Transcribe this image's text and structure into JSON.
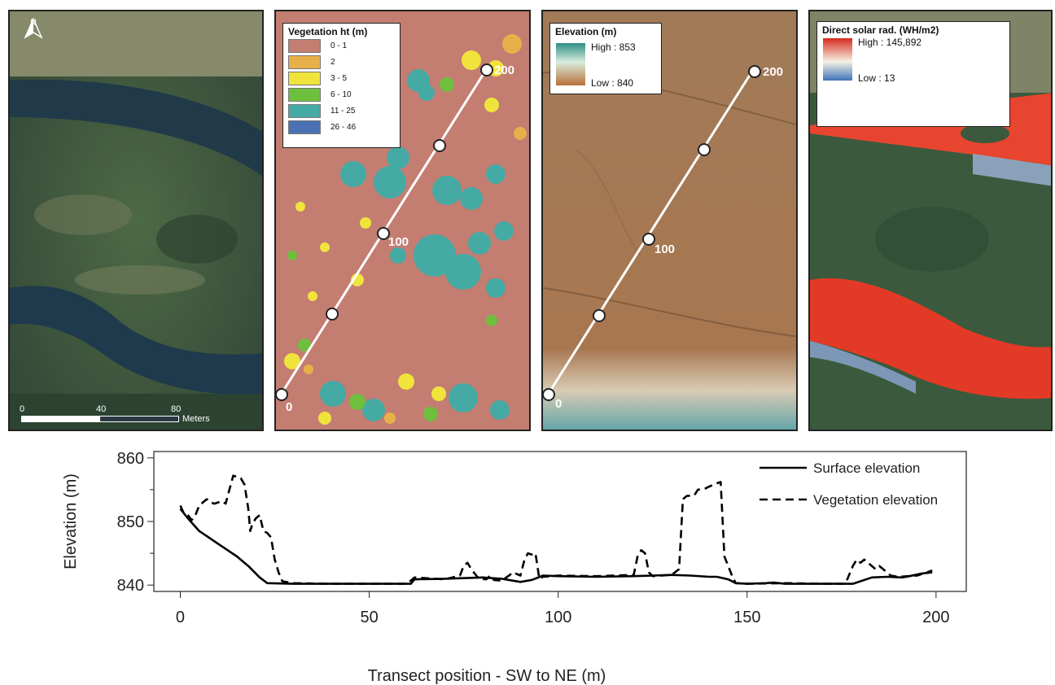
{
  "panels": {
    "aerial": {
      "north_label": "N",
      "scale_labels": [
        "0",
        "40",
        "80",
        "Meters"
      ]
    },
    "vegetation": {
      "legend_title": "Vegetation ht (m)",
      "classes": [
        {
          "label": "0 - 1",
          "color": "#c47d71"
        },
        {
          "label": "2",
          "color": "#e8b04a"
        },
        {
          "label": "3 - 5",
          "color": "#f0e43c"
        },
        {
          "label": "6 - 10",
          "color": "#6fbf3e"
        },
        {
          "label": "11 - 25",
          "color": "#45aaa4"
        },
        {
          "label": "26 - 46",
          "color": "#4c71b3"
        }
      ],
      "transect_labels": [
        "0",
        "100",
        "200"
      ]
    },
    "elevation": {
      "legend_title": "Elevation (m)",
      "high_label": "High : 853",
      "low_label": "Low : 840",
      "transect_labels": [
        "0",
        "100",
        "200"
      ]
    },
    "solar": {
      "legend_title": "Direct solar rad. (WH/m2)",
      "high_label": "High : 145,892",
      "low_label": "Low : 13"
    }
  },
  "chart_data": {
    "type": "line",
    "xlabel": "Transect position - SW to NE (m)",
    "ylabel": "Elevation (m)",
    "xlim": [
      -7,
      208
    ],
    "ylim": [
      839,
      861
    ],
    "xticks": [
      0,
      50,
      100,
      150,
      200
    ],
    "yticks": [
      840,
      850,
      860
    ],
    "legend_position": "top-right",
    "series": [
      {
        "name": "Surface elevation",
        "style": "solid",
        "color": "#000000",
        "points": [
          [
            0,
            852
          ],
          [
            2,
            850.5
          ],
          [
            5,
            848.5
          ],
          [
            10,
            846.5
          ],
          [
            15,
            844.5
          ],
          [
            18,
            843
          ],
          [
            21,
            841.2
          ],
          [
            23,
            840.3
          ],
          [
            30,
            840.2
          ],
          [
            40,
            840.2
          ],
          [
            50,
            840.2
          ],
          [
            55,
            840.2
          ],
          [
            61,
            840.2
          ],
          [
            62,
            840.9
          ],
          [
            70,
            841
          ],
          [
            80,
            841.2
          ],
          [
            85,
            841
          ],
          [
            90,
            840.5
          ],
          [
            93,
            840.8
          ],
          [
            96,
            841.5
          ],
          [
            100,
            841.4
          ],
          [
            110,
            841.3
          ],
          [
            120,
            841.4
          ],
          [
            125,
            841.5
          ],
          [
            130,
            841.6
          ],
          [
            135,
            841.5
          ],
          [
            140,
            841.3
          ],
          [
            142,
            841.3
          ],
          [
            145,
            840.9
          ],
          [
            147,
            840.3
          ],
          [
            150,
            840.2
          ],
          [
            155,
            840.3
          ],
          [
            157,
            840.4
          ],
          [
            160,
            840.2
          ],
          [
            170,
            840.2
          ],
          [
            178,
            840.2
          ],
          [
            180,
            840.6
          ],
          [
            183,
            841.2
          ],
          [
            187,
            841.3
          ],
          [
            191,
            841.2
          ],
          [
            193,
            841.4
          ],
          [
            196,
            841.8
          ],
          [
            199,
            842
          ]
        ]
      },
      {
        "name": "Vegetation elevation",
        "style": "dashed",
        "color": "#000000",
        "points": [
          [
            0,
            852.5
          ],
          [
            1,
            851.2
          ],
          [
            2,
            851
          ],
          [
            3,
            850.2
          ],
          [
            4,
            851
          ],
          [
            5,
            852.5
          ],
          [
            6,
            853
          ],
          [
            7,
            853.5
          ],
          [
            8,
            853
          ],
          [
            9,
            852.8
          ],
          [
            11,
            853.2
          ],
          [
            12,
            852.8
          ],
          [
            13,
            855
          ],
          [
            14,
            857.2
          ],
          [
            15,
            857
          ],
          [
            16,
            856.8
          ],
          [
            17,
            855.8
          ],
          [
            18,
            852
          ],
          [
            18.5,
            848.5
          ],
          [
            19,
            849.5
          ],
          [
            20,
            850.5
          ],
          [
            21,
            851
          ],
          [
            22,
            848.5
          ],
          [
            23,
            848.2
          ],
          [
            24,
            847.5
          ],
          [
            25,
            844
          ],
          [
            26,
            842
          ],
          [
            27,
            840.6
          ],
          [
            30,
            840.3
          ],
          [
            40,
            840.2
          ],
          [
            50,
            840.2
          ],
          [
            60,
            840.2
          ],
          [
            62,
            841.2
          ],
          [
            70,
            840.9
          ],
          [
            74,
            841.5
          ],
          [
            75,
            843
          ],
          [
            76,
            843.5
          ],
          [
            77,
            842.5
          ],
          [
            79,
            841
          ],
          [
            81,
            840.9
          ],
          [
            82,
            841.5
          ],
          [
            83,
            840.8
          ],
          [
            85,
            840.7
          ],
          [
            87,
            841.5
          ],
          [
            88,
            842
          ],
          [
            90,
            841.5
          ],
          [
            91,
            843.8
          ],
          [
            92,
            845
          ],
          [
            93,
            844.8
          ],
          [
            94,
            845
          ],
          [
            95,
            841
          ],
          [
            96,
            841.3
          ],
          [
            100,
            841.5
          ],
          [
            110,
            841.4
          ],
          [
            120,
            841.6
          ],
          [
            121,
            844.5
          ],
          [
            122,
            845.5
          ],
          [
            123,
            845
          ],
          [
            124,
            842
          ],
          [
            125,
            841.4
          ],
          [
            130,
            841.6
          ],
          [
            132,
            842.5
          ],
          [
            133,
            853.5
          ],
          [
            134,
            854
          ],
          [
            136,
            854.1
          ],
          [
            137,
            855
          ],
          [
            139,
            855.2
          ],
          [
            140,
            855.5
          ],
          [
            142,
            856
          ],
          [
            143,
            856.2
          ],
          [
            144,
            844.5
          ],
          [
            146,
            841.5
          ],
          [
            147,
            840.3
          ],
          [
            150,
            840.2
          ],
          [
            160,
            840.3
          ],
          [
            170,
            840.2
          ],
          [
            176,
            840.2
          ],
          [
            178,
            843
          ],
          [
            179,
            844
          ],
          [
            180,
            843.5
          ],
          [
            181,
            844
          ],
          [
            183,
            843
          ],
          [
            184,
            842.5
          ],
          [
            185,
            843
          ],
          [
            186,
            842.5
          ],
          [
            188,
            841.5
          ],
          [
            190,
            841.3
          ],
          [
            195,
            841.5
          ],
          [
            199,
            842.3
          ]
        ]
      }
    ]
  }
}
